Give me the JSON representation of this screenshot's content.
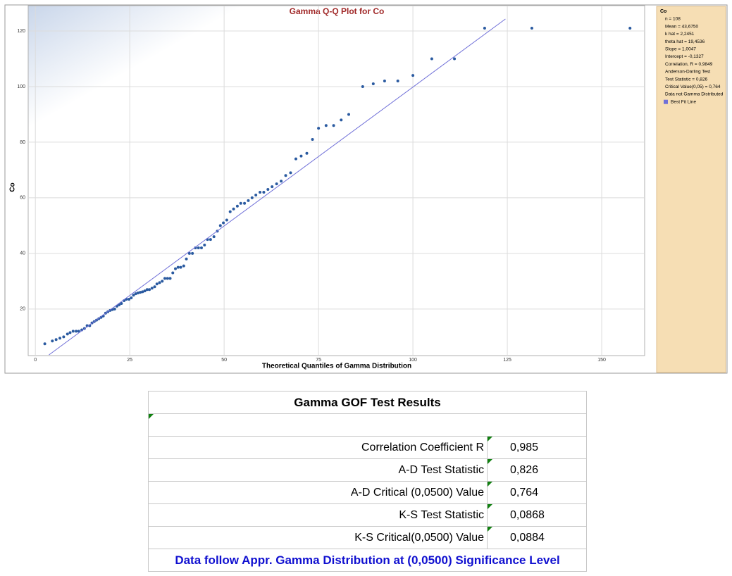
{
  "chart_data": {
    "type": "scatter",
    "title": "Gamma Q-Q Plot for Co",
    "x_label": "Theoretical Quantiles of Gamma Distribution",
    "y_label": "Co",
    "xlim": [
      -1.9,
      161
    ],
    "ylim": [
      3.5,
      124.3
    ],
    "xticks": [
      0,
      25,
      50,
      75,
      100,
      125,
      150
    ],
    "yticks": [
      20,
      40,
      60,
      80,
      100,
      120
    ],
    "grid": true,
    "series": [
      {
        "color": "#2a5aa0",
        "x": [
          2.5,
          4.5,
          5.5,
          6.5,
          7.5,
          8.5,
          9.2,
          10,
          10.8,
          11.5,
          12.3,
          13,
          13.7,
          14.4,
          15,
          15.6,
          16.2,
          16.8,
          17.4,
          18,
          18.6,
          19.2,
          19.8,
          20.4,
          21,
          21.6,
          22.2,
          22.8,
          23.5,
          24.1,
          24.8,
          25.4,
          26,
          26.6,
          27.2,
          27.8,
          28.4,
          29,
          29.6,
          30.2,
          30.9,
          31.6,
          32.2,
          32.9,
          33.6,
          34.3,
          35,
          35.7,
          36.4,
          37.1,
          37.8,
          38.5,
          39.3,
          40,
          40.8,
          41.6,
          42.4,
          43.2,
          44,
          44.8,
          45.6,
          46.4,
          47.3,
          48.2,
          49,
          49.8,
          50.7,
          51.6,
          52.5,
          53.5,
          54.4,
          55.4,
          56.4,
          57.4,
          58.4,
          59.5,
          60.5,
          61.6,
          62.7,
          63.9,
          65.1,
          66.3,
          67.6,
          69,
          70.4,
          71.9,
          73.4,
          75,
          77,
          79,
          81,
          83,
          86.7,
          89.5,
          92.5,
          96,
          100,
          105,
          111,
          119,
          131.5,
          157.5
        ],
        "values": [
          7.5,
          8.5,
          9,
          9.5,
          10,
          11,
          11.5,
          12,
          12,
          12,
          12.5,
          13,
          14,
          14,
          15,
          15.5,
          16,
          16.5,
          17,
          17.5,
          18.5,
          19,
          19.5,
          19.8,
          20,
          21,
          21.5,
          22,
          23,
          23.5,
          23.5,
          24,
          25,
          25.5,
          25.8,
          26,
          26.2,
          26.5,
          27,
          27,
          27.5,
          28,
          29,
          29.5,
          30,
          31,
          31,
          31,
          33,
          34.5,
          35,
          35,
          35.5,
          38,
          40,
          40,
          42,
          42,
          42,
          43,
          45,
          45,
          46,
          48,
          50,
          51,
          52,
          55,
          56,
          57,
          58,
          58,
          59,
          60,
          61,
          62,
          62,
          63,
          64,
          65,
          66,
          68,
          69,
          74,
          75,
          76,
          81,
          85,
          86,
          86,
          88,
          90,
          100,
          101,
          102,
          102,
          104,
          110,
          110,
          121,
          121,
          121
        ]
      },
      {
        "name": "Best Fit Line",
        "color": "#7070d8",
        "x": [
          3.6,
          124.5
        ],
        "values": [
          3.5,
          124.3
        ]
      }
    ],
    "stats_title": "Co",
    "annotations": [
      "n = 108",
      "Mean = 43,6750",
      "k hat = 2,2451",
      "theta hat = 19,4536",
      "Slope = 1,0047",
      "Intercept = -0,1327",
      "Correlation, R = 0,9849",
      "Anderson-Darling Test",
      "Test Statistic = 0,826",
      "Critical Value(0,05) = 0,764",
      "Data not Gamma Distributed"
    ]
  },
  "table": {
    "title": "Gamma GOF Test Results",
    "rows": [
      [
        "Correlation Coefficient R",
        "0,985"
      ],
      [
        "A-D Test Statistic",
        "0,826"
      ],
      [
        "A-D Critical (0,0500) Value",
        "0,764"
      ],
      [
        "K-S Test Statistic",
        "0,0868"
      ],
      [
        "K-S Critical(0,0500)  Value",
        "0,0884"
      ]
    ],
    "footer": "Data follow Appr. Gamma Distribution at (0,0500) Significance Level"
  }
}
